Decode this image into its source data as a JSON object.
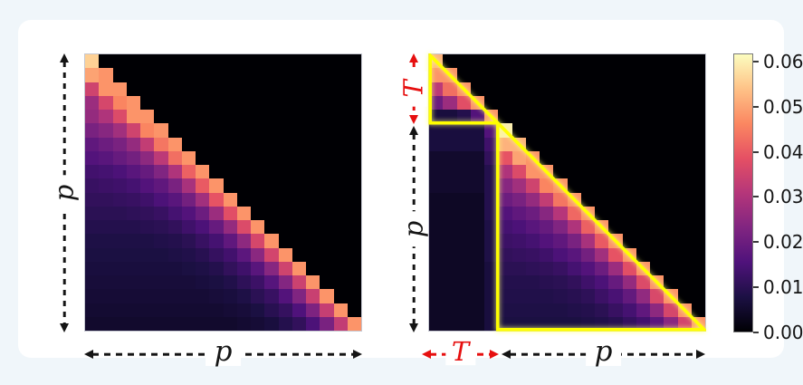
{
  "colors": {
    "page_background": "#f0f6fa",
    "card_background": "#ffffff",
    "axis_black": "#151515",
    "t_red": "#e60f0f",
    "annotation_yellow": "#ffff00"
  },
  "colorbar": {
    "vmax": 0.0618,
    "masked_color": "#000004",
    "colormap": "magma",
    "stops": [
      "#000004",
      "#1c1044",
      "#4f127b",
      "#812581",
      "#b5367a",
      "#e55064",
      "#fb8761",
      "#fec287",
      "#fcfdbf"
    ],
    "ticks": [
      {
        "label": "0.06",
        "value": 0.06
      },
      {
        "label": "0.05",
        "value": 0.05
      },
      {
        "label": "0.04",
        "value": 0.04
      },
      {
        "label": "0.03",
        "value": 0.03
      },
      {
        "label": "0.02",
        "value": 0.02
      },
      {
        "label": "0.01",
        "value": 0.01
      },
      {
        "label": "0.00",
        "value": 0.0
      }
    ]
  },
  "chart_data": [
    {
      "type": "heatmap",
      "name": "left-panel",
      "n": 20,
      "mask": "upper-triangle",
      "xlabel": "p",
      "ylabel": "p",
      "vmin": 0,
      "vmax": 0.0618,
      "colormap": "magma",
      "matrix": [
        [
          0.056
        ],
        [
          0.05,
          0.048
        ],
        [
          0.035,
          0.048,
          0.048
        ],
        [
          0.027,
          0.036,
          0.046,
          0.048
        ],
        [
          0.026,
          0.03,
          0.037,
          0.048,
          0.048
        ],
        [
          0.022,
          0.024,
          0.028,
          0.035,
          0.046,
          0.048
        ],
        [
          0.018,
          0.02,
          0.022,
          0.026,
          0.033,
          0.044,
          0.048
        ],
        [
          0.016,
          0.017,
          0.019,
          0.021,
          0.025,
          0.032,
          0.043,
          0.048
        ],
        [
          0.0135,
          0.014,
          0.015,
          0.017,
          0.019,
          0.023,
          0.03,
          0.041,
          0.048
        ],
        [
          0.012,
          0.0125,
          0.013,
          0.014,
          0.016,
          0.018,
          0.022,
          0.029,
          0.04,
          0.048
        ],
        [
          0.011,
          0.011,
          0.0115,
          0.012,
          0.013,
          0.015,
          0.017,
          0.021,
          0.028,
          0.039,
          0.048
        ],
        [
          0.01,
          0.01,
          0.01,
          0.0105,
          0.011,
          0.012,
          0.014,
          0.016,
          0.02,
          0.027,
          0.038,
          0.048
        ],
        [
          0.009,
          0.009,
          0.009,
          0.009,
          0.0095,
          0.01,
          0.011,
          0.013,
          0.015,
          0.019,
          0.026,
          0.037,
          0.048
        ],
        [
          0.008,
          0.008,
          0.008,
          0.008,
          0.008,
          0.0085,
          0.009,
          0.01,
          0.012,
          0.014,
          0.018,
          0.025,
          0.036,
          0.048
        ],
        [
          0.0075,
          0.0075,
          0.0075,
          0.0075,
          0.0075,
          0.0075,
          0.008,
          0.0085,
          0.0095,
          0.0115,
          0.0135,
          0.0175,
          0.0245,
          0.0355,
          0.048
        ],
        [
          0.007,
          0.007,
          0.007,
          0.007,
          0.007,
          0.007,
          0.007,
          0.0075,
          0.008,
          0.009,
          0.011,
          0.013,
          0.017,
          0.024,
          0.035,
          0.048
        ],
        [
          0.0065,
          0.0065,
          0.0065,
          0.0065,
          0.0065,
          0.0065,
          0.0065,
          0.0065,
          0.007,
          0.0075,
          0.0085,
          0.0105,
          0.0125,
          0.0165,
          0.0235,
          0.0345,
          0.048
        ],
        [
          0.006,
          0.006,
          0.006,
          0.006,
          0.006,
          0.006,
          0.006,
          0.006,
          0.006,
          0.0065,
          0.007,
          0.008,
          0.01,
          0.012,
          0.016,
          0.023,
          0.034,
          0.048
        ],
        [
          0.0055,
          0.0055,
          0.0055,
          0.0055,
          0.0055,
          0.0055,
          0.0055,
          0.0055,
          0.0055,
          0.0055,
          0.006,
          0.0065,
          0.0075,
          0.0095,
          0.0115,
          0.0155,
          0.0225,
          0.0335,
          0.048
        ],
        [
          0.005,
          0.005,
          0.005,
          0.005,
          0.005,
          0.005,
          0.005,
          0.005,
          0.005,
          0.005,
          0.005,
          0.0055,
          0.006,
          0.007,
          0.009,
          0.011,
          0.015,
          0.022,
          0.033,
          0.048
        ]
      ]
    },
    {
      "type": "heatmap",
      "name": "right-panel",
      "n": 20,
      "mask": "upper-triangle",
      "t_block": 5,
      "xlabel_t": "T",
      "xlabel_p": "p",
      "ylabel_t": "T",
      "ylabel_p": "p",
      "vmin": 0,
      "vmax": 0.0618,
      "colormap": "magma",
      "annotations": [
        {
          "shape": "triangle",
          "name": "t-block-outline",
          "index_range": [
            0,
            5
          ],
          "color": "#ffff00"
        },
        {
          "shape": "triangle",
          "name": "p-block-outline",
          "index_range": [
            5,
            20
          ],
          "color": "#ffff00"
        }
      ],
      "matrix": [
        [
          0.052
        ],
        [
          0.048,
          0.048
        ],
        [
          0.032,
          0.043,
          0.048
        ],
        [
          0.02,
          0.027,
          0.038,
          0.048
        ],
        [
          0.007,
          0.007,
          0.009,
          0.016,
          0.048
        ],
        [
          0.007,
          0.007,
          0.007,
          0.007,
          0.016,
          0.06
        ],
        [
          0.007,
          0.007,
          0.007,
          0.007,
          0.013,
          0.052,
          0.052
        ],
        [
          0.005,
          0.005,
          0.005,
          0.005,
          0.011,
          0.039,
          0.05,
          0.048
        ],
        [
          0.005,
          0.005,
          0.005,
          0.005,
          0.009,
          0.03,
          0.037,
          0.048,
          0.048
        ],
        [
          0.005,
          0.005,
          0.005,
          0.005,
          0.009,
          0.024,
          0.028,
          0.035,
          0.046,
          0.048
        ],
        [
          0.004,
          0.004,
          0.004,
          0.004,
          0.009,
          0.02,
          0.022,
          0.026,
          0.033,
          0.044,
          0.048
        ],
        [
          0.004,
          0.004,
          0.004,
          0.004,
          0.009,
          0.016,
          0.018,
          0.02,
          0.024,
          0.031,
          0.042,
          0.048
        ],
        [
          0.004,
          0.004,
          0.004,
          0.004,
          0.008,
          0.014,
          0.015,
          0.017,
          0.019,
          0.023,
          0.03,
          0.041,
          0.048
        ],
        [
          0.004,
          0.004,
          0.004,
          0.004,
          0.008,
          0.0125,
          0.013,
          0.014,
          0.016,
          0.018,
          0.022,
          0.029,
          0.04,
          0.048
        ],
        [
          0.004,
          0.004,
          0.004,
          0.004,
          0.008,
          0.011,
          0.0115,
          0.012,
          0.013,
          0.015,
          0.017,
          0.021,
          0.028,
          0.039,
          0.048
        ],
        [
          0.004,
          0.004,
          0.004,
          0.004,
          0.007,
          0.01,
          0.01,
          0.0105,
          0.011,
          0.012,
          0.014,
          0.016,
          0.02,
          0.027,
          0.038,
          0.048
        ],
        [
          0.004,
          0.004,
          0.004,
          0.004,
          0.007,
          0.009,
          0.009,
          0.009,
          0.0095,
          0.01,
          0.011,
          0.013,
          0.015,
          0.019,
          0.026,
          0.037,
          0.048
        ],
        [
          0.004,
          0.004,
          0.004,
          0.004,
          0.007,
          0.0085,
          0.0085,
          0.0085,
          0.0085,
          0.009,
          0.0095,
          0.0105,
          0.0125,
          0.0145,
          0.0185,
          0.0255,
          0.0365,
          0.048
        ],
        [
          0.004,
          0.004,
          0.004,
          0.004,
          0.007,
          0.008,
          0.008,
          0.008,
          0.008,
          0.008,
          0.0085,
          0.009,
          0.01,
          0.012,
          0.014,
          0.018,
          0.025,
          0.036,
          0.048
        ],
        [
          0.004,
          0.004,
          0.004,
          0.004,
          0.007,
          0.0075,
          0.0075,
          0.0075,
          0.0075,
          0.0075,
          0.0075,
          0.008,
          0.0085,
          0.0095,
          0.0115,
          0.0135,
          0.0175,
          0.0245,
          0.0355,
          0.048
        ]
      ]
    }
  ]
}
